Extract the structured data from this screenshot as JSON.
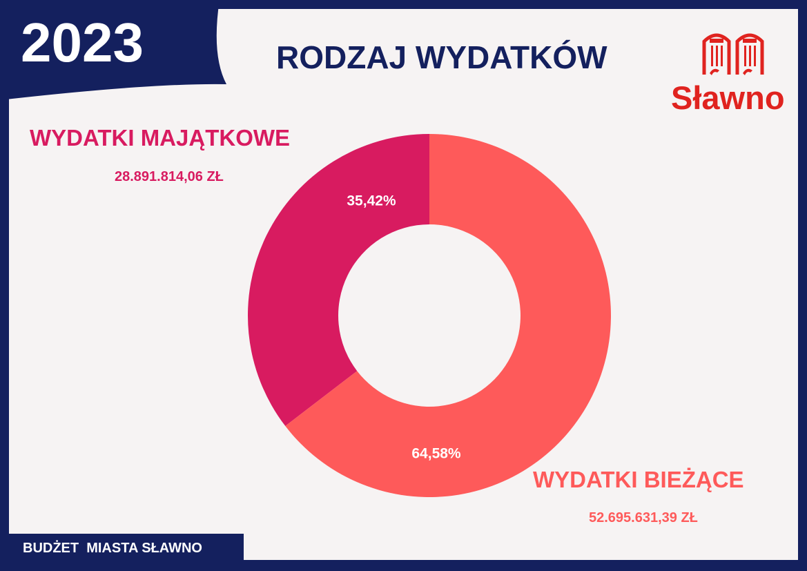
{
  "header": {
    "year": "2023",
    "title": "RODZAJ WYDATKÓW",
    "logo_text": "Sławno"
  },
  "footer": {
    "text": "BUDŻET  MIASTA SŁAWNO"
  },
  "colors": {
    "navy": "#14205e",
    "majatkowe": "#d81b60",
    "biezace": "#fe5a5a",
    "logo_red": "#e0231f",
    "background": "#f6f3f3"
  },
  "chart_data": {
    "type": "pie",
    "variant": "donut",
    "title": "RODZAJ WYDATKÓW",
    "slices": [
      {
        "name": "WYDATKI MAJĄTKOWE",
        "amount_label": "28.891.814,06 ZŁ",
        "value": 28891814.06,
        "pct_label": "35,42%",
        "color": "#d81b60"
      },
      {
        "name": "WYDATKI BIEŻĄCE",
        "amount_label": "52.695.631,39 ZŁ",
        "value": 52695631.39,
        "pct_label": "64,58%",
        "color": "#fe5a5a"
      }
    ]
  }
}
